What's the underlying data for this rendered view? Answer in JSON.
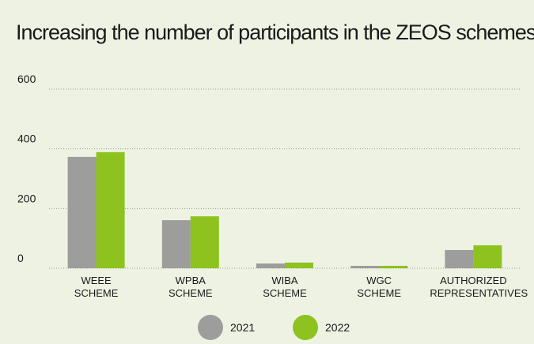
{
  "chart_data": {
    "type": "bar",
    "title": "Increasing the number of participants in the ZEOS schemes",
    "categories": [
      "WEEE SCHEME",
      "WPBA SCHEME",
      "WIBA SCHEME",
      "WGC SCHEME",
      "AUTHORIZED REPRESENTATIVES"
    ],
    "series": [
      {
        "name": "2021",
        "color": "#9d9d9c",
        "values": [
          373,
          161,
          16,
          8,
          61
        ]
      },
      {
        "name": "2022",
        "color": "#8dc21f",
        "values": [
          389,
          174,
          19,
          8,
          77
        ]
      }
    ],
    "ylim": [
      0,
      600
    ],
    "yticks": [
      0,
      200,
      400,
      600
    ],
    "grid": true
  }
}
